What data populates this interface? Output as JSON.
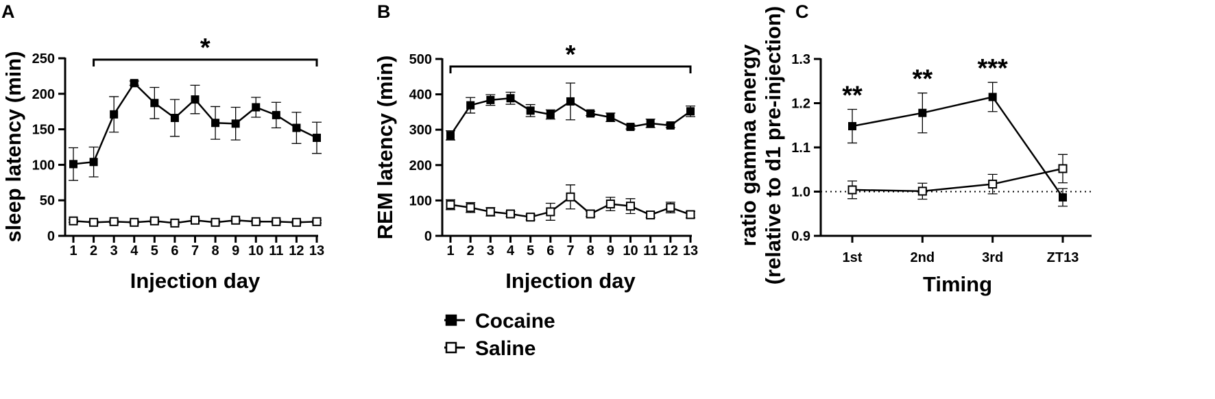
{
  "legend": [
    {
      "label": "Cocaine",
      "marker": "filled-square"
    },
    {
      "label": "Saline",
      "marker": "open-square"
    }
  ],
  "colors": {
    "ink": "#000000",
    "background": "#ffffff"
  },
  "chart_data": [
    {
      "panel": "A",
      "type": "line",
      "title": "",
      "xlabel": "Injection day",
      "ylabel": "sleep latency (min)",
      "ylim": [
        0,
        250
      ],
      "yticks": [
        0,
        50,
        100,
        150,
        200,
        250
      ],
      "x": [
        1,
        2,
        3,
        4,
        5,
        6,
        7,
        8,
        9,
        10,
        11,
        12,
        13
      ],
      "series": [
        {
          "name": "Cocaine",
          "marker": "filled-square",
          "values": [
            101,
            104,
            171,
            215,
            187,
            166,
            192,
            159,
            158,
            181,
            170,
            152,
            138
          ],
          "errors": [
            23,
            21,
            25,
            3,
            22,
            26,
            20,
            23,
            23,
            14,
            18,
            22,
            22
          ]
        },
        {
          "name": "Saline",
          "marker": "open-square",
          "values": [
            21,
            19,
            20,
            19,
            21,
            18,
            22,
            19,
            22,
            20,
            20,
            19,
            20
          ],
          "errors": [
            2,
            2,
            2,
            2,
            2,
            2,
            2,
            2,
            2,
            2,
            2,
            2,
            2
          ]
        }
      ],
      "annotations": [
        {
          "type": "bracket",
          "x_start": 2,
          "x_end": 13,
          "label": "*"
        }
      ]
    },
    {
      "panel": "B",
      "type": "line",
      "title": "",
      "xlabel": "Injection day",
      "ylabel": "REM latency (min)",
      "ylim": [
        0,
        500
      ],
      "yticks": [
        0,
        100,
        200,
        300,
        400,
        500
      ],
      "x": [
        1,
        2,
        3,
        4,
        5,
        6,
        7,
        8,
        9,
        10,
        11,
        12,
        13
      ],
      "series": [
        {
          "name": "Cocaine",
          "marker": "filled-square",
          "values": [
            284,
            369,
            384,
            389,
            354,
            343,
            380,
            346,
            335,
            308,
            318,
            312,
            352
          ],
          "errors": [
            13,
            22,
            15,
            17,
            17,
            13,
            52,
            6,
            12,
            6,
            12,
            6,
            15
          ]
        },
        {
          "name": "Saline",
          "marker": "open-square",
          "values": [
            88,
            80,
            68,
            62,
            53,
            68,
            110,
            62,
            90,
            84,
            59,
            80,
            60
          ],
          "errors": [
            14,
            14,
            12,
            7,
            8,
            24,
            34,
            7,
            19,
            21,
            7,
            15,
            9
          ]
        }
      ],
      "annotations": [
        {
          "type": "bracket",
          "x_start": 1,
          "x_end": 13,
          "label": "*"
        }
      ]
    },
    {
      "panel": "C",
      "type": "line",
      "title": "",
      "xlabel": "Timing",
      "ylabel": "ratio gamma energy",
      "ylabel2": "(relative to d1 pre-injection)",
      "ylim": [
        0.9,
        1.3
      ],
      "yticks": [
        0.9,
        1.0,
        1.1,
        1.2,
        1.3
      ],
      "categories": [
        "1st",
        "2nd",
        "3rd",
        "ZT13"
      ],
      "series": [
        {
          "name": "Cocaine",
          "marker": "filled-square",
          "values": [
            1.148,
            1.178,
            1.214,
            0.987
          ],
          "errors": [
            0.038,
            0.045,
            0.033,
            0.02
          ]
        },
        {
          "name": "Saline",
          "marker": "open-square",
          "values": [
            1.004,
            1.001,
            1.017,
            1.052
          ],
          "errors": [
            0.02,
            0.018,
            0.022,
            0.032
          ]
        }
      ],
      "reference_line": 1.0,
      "annotations": [
        {
          "type": "text",
          "category": "1st",
          "label": "**"
        },
        {
          "type": "text",
          "category": "2nd",
          "label": "**"
        },
        {
          "type": "text",
          "category": "3rd",
          "label": "***"
        }
      ]
    }
  ]
}
